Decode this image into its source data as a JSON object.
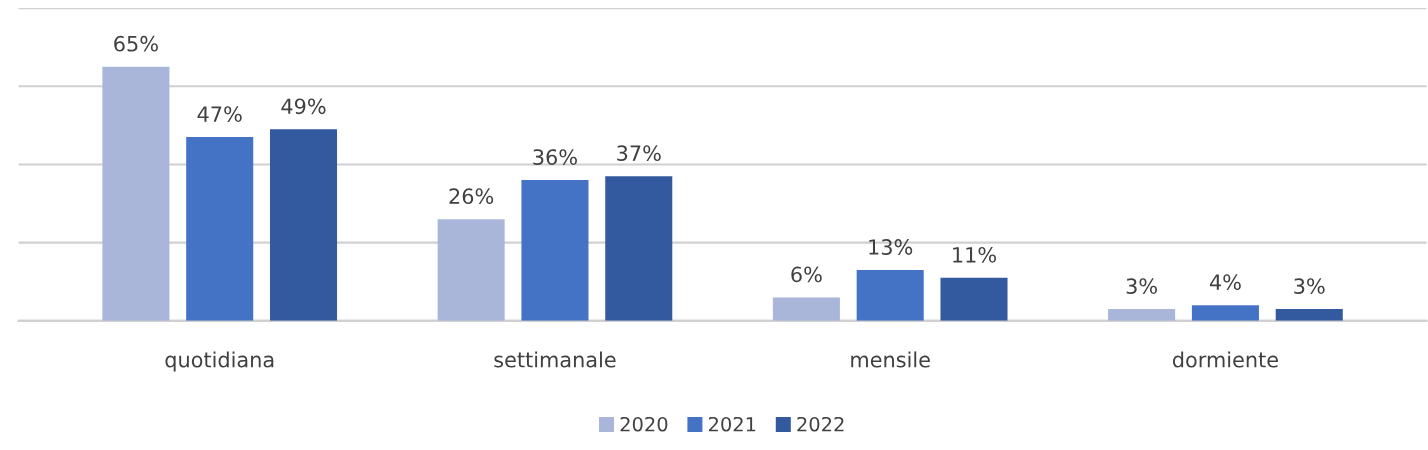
{
  "chart_data": {
    "type": "bar",
    "categories": [
      "quotidiana",
      "settimanale",
      "mensile",
      "dormiente"
    ],
    "series": [
      {
        "name": "2020",
        "color": "#a9b6da",
        "values": [
          65,
          26,
          6,
          3
        ],
        "value_labels": [
          "65%",
          "26%",
          "6%",
          "3%"
        ]
      },
      {
        "name": "2021",
        "color": "#4472c4",
        "values": [
          47,
          36,
          13,
          4
        ],
        "value_labels": [
          "47%",
          "36%",
          "13%",
          "4%"
        ]
      },
      {
        "name": "2022",
        "color": "#335a9e",
        "values": [
          49,
          37,
          11,
          3
        ],
        "value_labels": [
          "49%",
          "37%",
          "11%",
          "3%"
        ]
      }
    ],
    "ylim": [
      0,
      80
    ],
    "yticks": [
      {
        "value": 0,
        "label": null
      },
      {
        "value": 20,
        "label": null
      },
      {
        "value": 40,
        "label": null
      },
      {
        "value": 60,
        "label": null
      },
      {
        "value": 80,
        "label": null
      }
    ],
    "grid": "y",
    "legend": "bottom",
    "tick_labels": "x"
  }
}
